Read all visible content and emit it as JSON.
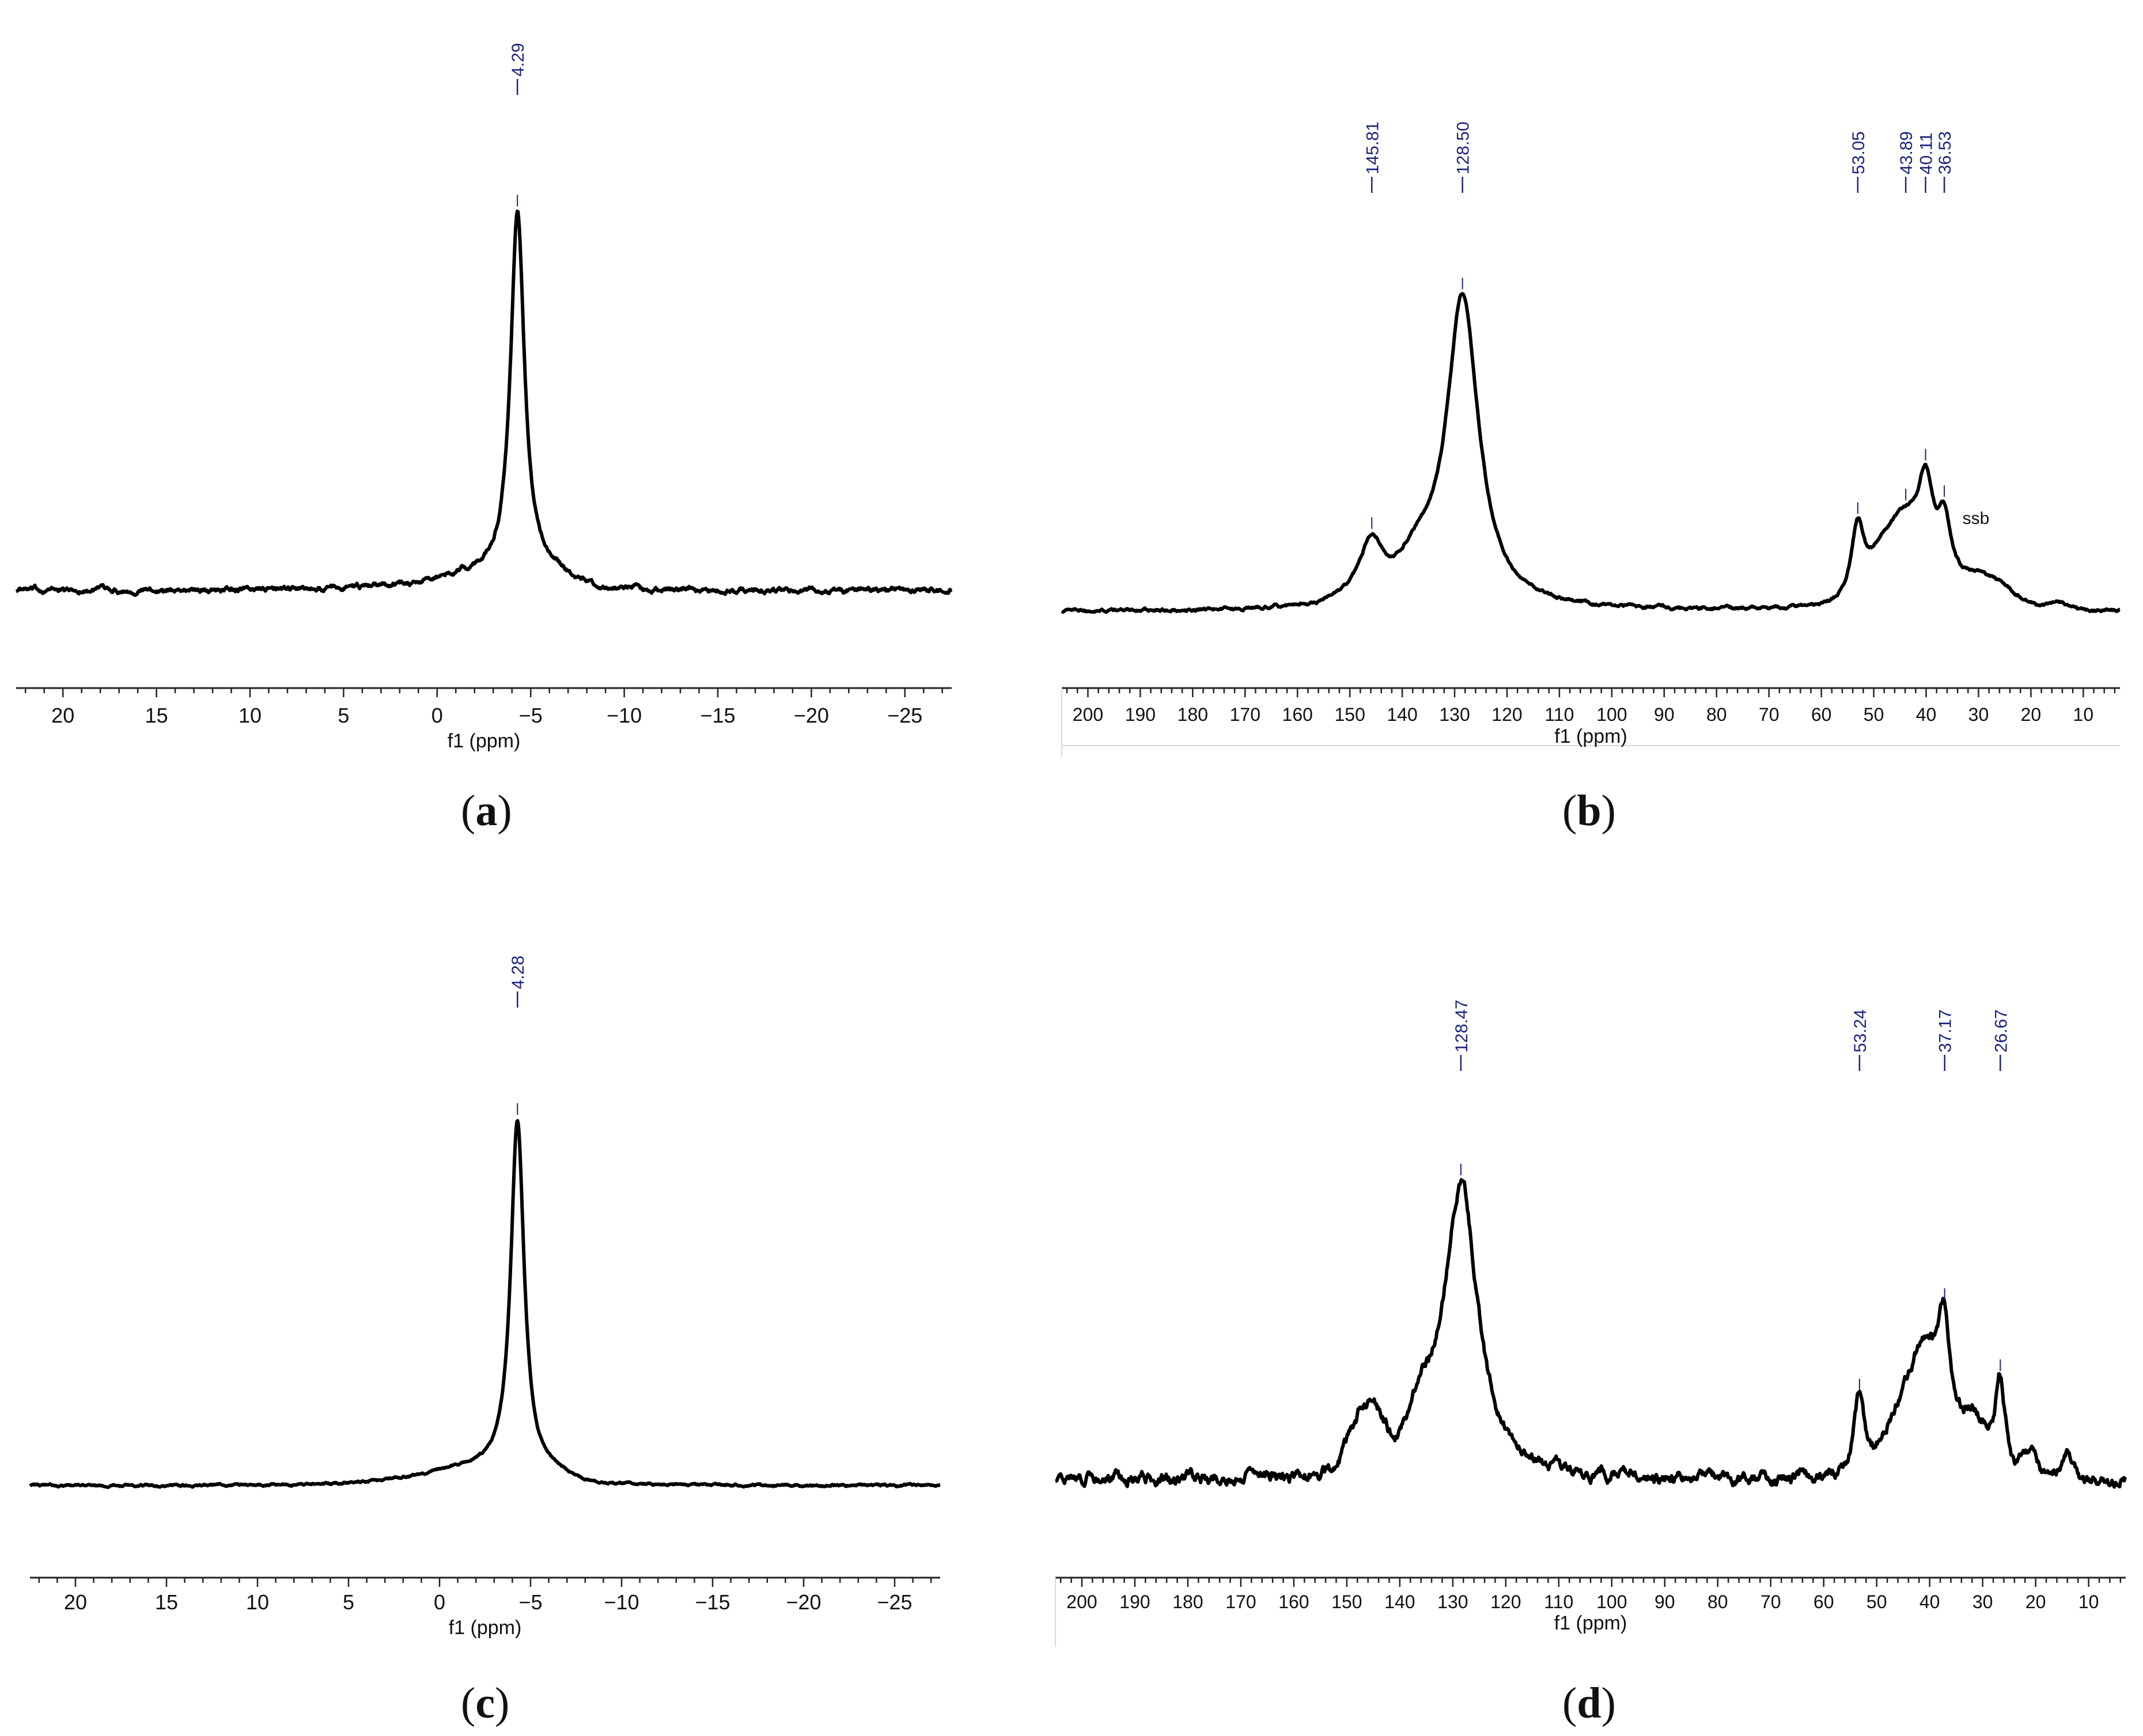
{
  "colors": {
    "spectrum": "#000000",
    "peak_label": "#1a237e",
    "axis": "#222222",
    "divider": "#d9d9d9"
  },
  "chart_data": [
    {
      "id": "a",
      "type": "line",
      "panel_label": "a",
      "xlabel": "f1 (ppm)",
      "xlim": [
        22.5,
        -27.5
      ],
      "reversed_x": true,
      "ticks": [
        20,
        15,
        10,
        5,
        0,
        -5,
        -10,
        -15,
        -20,
        -25
      ],
      "tick_labels": [
        "20",
        "15",
        "10",
        "5",
        "0",
        "−5",
        "−10",
        "−15",
        "−20",
        "−25"
      ],
      "minor_tick_step": 1,
      "grid": false,
      "peak_labels": [
        "4.29"
      ],
      "peaks": [
        {
          "ppm": -4.29,
          "height": 100,
          "width": 0.45,
          "label": "4.29"
        }
      ],
      "broad_components": [
        {
          "ppm": -2.5,
          "height": 3.2,
          "width": 2.2
        },
        {
          "ppm": -6.0,
          "height": 3.5,
          "width": 1.2
        },
        {
          "ppm": 1.5,
          "height": 1.0,
          "width": 3.0
        }
      ],
      "baseline": 0,
      "noise": 0.8,
      "ylim": [
        -14,
        112
      ]
    },
    {
      "id": "b",
      "type": "line",
      "panel_label": "b",
      "xlabel": "f1 (ppm)",
      "xlim": [
        205,
        3
      ],
      "reversed_x": true,
      "ticks": [
        200,
        190,
        180,
        170,
        160,
        150,
        140,
        130,
        120,
        110,
        100,
        90,
        80,
        70,
        60,
        50,
        40,
        30,
        20,
        10
      ],
      "tick_labels": [
        "200",
        "190",
        "180",
        "170",
        "160",
        "150",
        "140",
        "130",
        "120",
        "110",
        "100",
        "90",
        "80",
        "70",
        "60",
        "50",
        "40",
        "30",
        "20",
        "10"
      ],
      "minor_tick_step": 2,
      "grid": false,
      "annotation": "ssb",
      "peak_labels": [
        "145.81",
        "128.50",
        "53.05",
        "43.89",
        "40.11",
        "36.53"
      ],
      "peaks": [
        {
          "ppm": 145.81,
          "height": 20,
          "width": 3.0,
          "label": "145.81"
        },
        {
          "ppm": 128.5,
          "height": 100,
          "width": 3.8,
          "label": "128.50"
        },
        {
          "ppm": 53.05,
          "height": 24,
          "width": 1.5,
          "label": "53.05"
        },
        {
          "ppm": 43.89,
          "height": 22,
          "width": 3.5,
          "label": "43.89"
        },
        {
          "ppm": 40.11,
          "height": 32,
          "width": 2.0,
          "label": "40.11"
        },
        {
          "ppm": 36.53,
          "height": 20,
          "width": 1.5,
          "label": "36.53"
        }
      ],
      "broad_components": [
        {
          "ppm": 137,
          "height": 10,
          "width": 3.0
        },
        {
          "ppm": 48,
          "height": 12,
          "width": 2.5
        },
        {
          "ppm": 29,
          "height": 9,
          "width": 5.0
        },
        {
          "ppm": 14,
          "height": 1.5,
          "width": 2.0
        }
      ],
      "baseline": 0,
      "noise": 0.6,
      "ylim": [
        -14,
        112
      ]
    },
    {
      "id": "c",
      "type": "line",
      "panel_label": "c",
      "xlabel": "f1 (ppm)",
      "xlim": [
        22.5,
        -27.5
      ],
      "reversed_x": true,
      "ticks": [
        20,
        15,
        10,
        5,
        0,
        -5,
        -10,
        -15,
        -20,
        -25
      ],
      "tick_labels": [
        "20",
        "15",
        "10",
        "5",
        "0",
        "−5",
        "−10",
        "−15",
        "−20",
        "−25"
      ],
      "minor_tick_step": 1,
      "grid": false,
      "peak_labels": [
        "4.28"
      ],
      "peaks": [
        {
          "ppm": -4.28,
          "height": 100,
          "width": 0.45,
          "label": "4.28"
        }
      ],
      "broad_components": [
        {
          "ppm": -2.2,
          "height": 3.0,
          "width": 2.0
        },
        {
          "ppm": 0.5,
          "height": 1.8,
          "width": 3.0
        },
        {
          "ppm": -6.2,
          "height": 2.0,
          "width": 1.0
        }
      ],
      "baseline": 0,
      "noise": 0.35,
      "ylim": [
        -14,
        112
      ]
    },
    {
      "id": "d",
      "type": "line",
      "panel_label": "d",
      "xlabel": "f1 (ppm)",
      "xlim": [
        205,
        3
      ],
      "reversed_x": true,
      "ticks": [
        200,
        190,
        180,
        170,
        160,
        150,
        140,
        130,
        120,
        110,
        100,
        90,
        80,
        70,
        60,
        50,
        40,
        30,
        20,
        10
      ],
      "tick_labels": [
        "200",
        "190",
        "180",
        "170",
        "160",
        "150",
        "140",
        "130",
        "120",
        "110",
        "100",
        "90",
        "80",
        "70",
        "60",
        "50",
        "40",
        "30",
        "20",
        "10"
      ],
      "minor_tick_step": 2,
      "grid": false,
      "peak_labels": [
        "128.47",
        "53.24",
        "37.17",
        "26.67"
      ],
      "peaks": [
        {
          "ppm": 128.47,
          "height": 100,
          "width": 3.8,
          "label": "128.47"
        },
        {
          "ppm": 53.24,
          "height": 27,
          "width": 1.3,
          "label": "53.24"
        },
        {
          "ppm": 37.17,
          "height": 38,
          "width": 1.5,
          "label": "37.17"
        },
        {
          "ppm": 26.67,
          "height": 32,
          "width": 1.2,
          "label": "26.67"
        }
      ],
      "broad_components": [
        {
          "ppm": 146,
          "height": 22,
          "width": 3.0
        },
        {
          "ppm": 136,
          "height": 15,
          "width": 2.5
        },
        {
          "ppm": 41,
          "height": 40,
          "width": 3.0
        },
        {
          "ppm": 47,
          "height": 15,
          "width": 2.5
        },
        {
          "ppm": 32,
          "height": 18,
          "width": 2.5
        },
        {
          "ppm": 21,
          "height": 9,
          "width": 1.2
        },
        {
          "ppm": 14,
          "height": 9,
          "width": 1.0
        }
      ],
      "baseline": 0,
      "noise": 2.4,
      "ylim": [
        -14,
        112
      ]
    }
  ]
}
